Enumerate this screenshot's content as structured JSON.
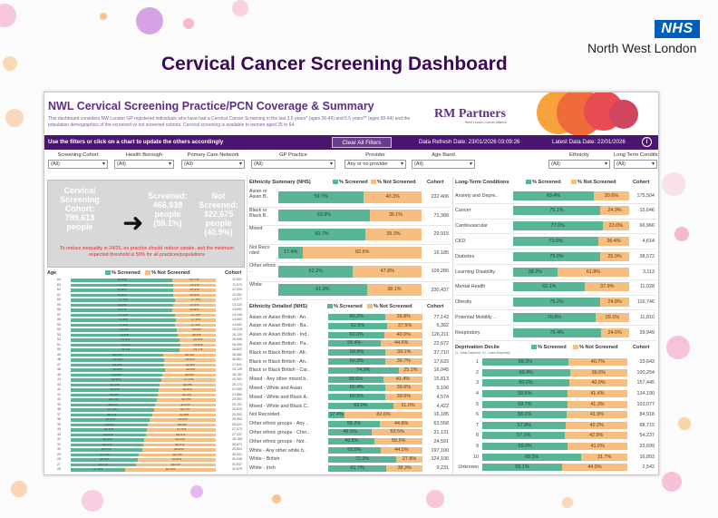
{
  "brand": {
    "nhs_logo": "NHS",
    "region": "North West London"
  },
  "page_title": "Cervical Cancer Screening Dashboard",
  "dashboard": {
    "title": "NWL Cervical Screening Practice/PCN Coverage & Summary",
    "description": "This dashboard considers NW London GP registered individuals who have had a Cervical Cancer Screening in the last 3.5 years* (ages 26-49) and 5.5 years** (ages 50-64) and the population demographics of the screened vs not screened cohorts. Cervical screening is available to women aged 25 to 64.",
    "partner_brand": "RM Partners",
    "partner_sub": "West London Cancer Alliance"
  },
  "filterbar": {
    "hint": "Use the filters or click on a chart to update the others accordingly",
    "clear_label": "Clear All Filters",
    "refresh": "Data Refresh Date: 23/01/2026 03:09:26",
    "latest": "Latest Data Date: 22/01/2026",
    "info_icon": "i"
  },
  "filters": [
    {
      "label": "Screening Cohort",
      "value": "(All)"
    },
    {
      "label": "Health Borough",
      "value": "(All)"
    },
    {
      "label": "Primary Care Network",
      "value": "(All)"
    },
    {
      "label": "GP Practice",
      "value": "(All)"
    },
    {
      "label": "Provider",
      "value": "Any or no provider"
    },
    {
      "label": "Age Band",
      "value": "(All)"
    },
    {
      "label": "Ethnicity",
      "value": "(All)"
    },
    {
      "label": "Long Term Conditions",
      "value": "(All)"
    }
  ],
  "kpi": {
    "cohort_line1": "Cervical",
    "cohort_line2": "Screening",
    "cohort_line3": "Cohort:",
    "cohort_value": "789,613",
    "cohort_unit": "people",
    "screened_label": "Screened:",
    "screened_value": "466,938",
    "screened_unit": "people",
    "screened_pct": "(59.1%)",
    "not_label": "Not Screened:",
    "not_value": "322,675",
    "not_unit": "people",
    "not_pct": "(40.9%)",
    "arrow": "➜",
    "note": "To reduce inequality in 24/25, no practice should reduce uptake, and the minimum expected threshold is 50% for all practices/populations"
  },
  "legend": {
    "screened": "% Screened",
    "not_screened": "% Not Screened",
    "cohort": "Cohort",
    "screened_color": "#5ab597",
    "not_color": "#f7be80"
  },
  "age": {
    "header": "Age",
    "rows": [
      {
        "age": "64",
        "s": "70.3%",
        "n": "29.7%",
        "c": "10,851"
      },
      {
        "age": "63",
        "s": "70.9%",
        "n": "29.1%",
        "c": "11,570"
      },
      {
        "age": "62",
        "s": "70.5%",
        "n": "29.5%",
        "c": "12,093"
      },
      {
        "age": "61",
        "s": "70.4%",
        "n": "29.6%",
        "c": "12,551"
      },
      {
        "age": "60",
        "s": "72.1%",
        "n": "27.9%",
        "c": "12,977"
      },
      {
        "age": "59",
        "s": "70.6%",
        "n": "29.4%",
        "c": "13,120"
      },
      {
        "age": "58",
        "s": "70.2%",
        "n": "29.8%",
        "c": "13,691"
      },
      {
        "age": "57",
        "s": "72.1%",
        "n": "27.9%",
        "c": "14,198"
      },
      {
        "age": "56",
        "s": "72.5%",
        "n": "27.5%",
        "c": "14,603"
      },
      {
        "age": "55",
        "s": "72.1%",
        "n": "27.9%",
        "c": "14,681"
      },
      {
        "age": "54",
        "s": "73.4%",
        "n": "26.6%",
        "c": "15,018"
      },
      {
        "age": "53",
        "s": "73.5%",
        "n": "26.5%",
        "c": "15,129"
      },
      {
        "age": "52",
        "s": "75.1%",
        "n": "24.9%",
        "c": "15,546"
      },
      {
        "age": "51",
        "s": "75.4%",
        "n": "24.6%",
        "c": "16,006"
      },
      {
        "age": "50",
        "s": "75.3%",
        "n": "24.7%",
        "c": "15,822"
      },
      {
        "age": "49",
        "s": "63.7%",
        "n": "36.3%",
        "c": "16,382"
      },
      {
        "age": "48",
        "s": "64.6%",
        "n": "35.4%",
        "c": "16,861"
      },
      {
        "age": "47",
        "s": "64.5%",
        "n": "35.5%",
        "c": "17,641"
      },
      {
        "age": "46",
        "s": "64.8%",
        "n": "35.2%",
        "c": "19,120"
      },
      {
        "age": "45",
        "s": "63.4%",
        "n": "36.6%",
        "c": "18,783"
      },
      {
        "age": "44",
        "s": "62.8%",
        "n": "37.2%",
        "c": "19,381"
      },
      {
        "age": "43",
        "s": "61.1%",
        "n": "38.9%",
        "c": "20,173"
      },
      {
        "age": "42",
        "s": "60.6%",
        "n": "39.4%",
        "c": "21,083"
      },
      {
        "age": "41",
        "s": "60.0%",
        "n": "40.0%",
        "c": "21,860"
      },
      {
        "age": "40",
        "s": "59.1%",
        "n": "40.9%",
        "c": "22,391"
      },
      {
        "age": "39",
        "s": "58.0%",
        "n": "42.0%",
        "c": "23,151"
      },
      {
        "age": "38",
        "s": "57.3%",
        "n": "42.7%",
        "c": "24,610"
      },
      {
        "age": "37",
        "s": "56.2%",
        "n": "43.8%",
        "c": "25,303"
      },
      {
        "age": "36",
        "s": "54.5%",
        "n": "45.5%",
        "c": "25,962"
      },
      {
        "age": "35",
        "s": "53.4%",
        "n": "46.6%",
        "c": "26,021"
      },
      {
        "age": "34",
        "s": "52.6%",
        "n": "47.4%",
        "c": "27,073"
      },
      {
        "age": "33",
        "s": "51.6%",
        "n": "48.4%",
        "c": "27,437"
      },
      {
        "age": "32",
        "s": "50.8%",
        "n": "49.2%",
        "c": "28,165"
      },
      {
        "age": "31",
        "s": "50.1%",
        "n": "49.9%",
        "c": "28,871"
      },
      {
        "age": "30",
        "s": "49.2%",
        "n": "50.8%",
        "c": "29,604"
      },
      {
        "age": "29",
        "s": "47.1%",
        "n": "52.9%",
        "c": "30,001"
      },
      {
        "age": "28",
        "s": "46.4%",
        "n": "53.6%",
        "c": "30,948"
      },
      {
        "age": "27",
        "s": "44.7%",
        "n": "55.3%",
        "c": "31,537"
      },
      {
        "age": "26",
        "s": "37.6%",
        "n": "62.4%",
        "c": "30,879"
      }
    ]
  },
  "ethnicity_summary": {
    "header": "Ethnicity Summary (NHS)",
    "rows": [
      {
        "label": "Asian or Asian B..",
        "s": 59.7,
        "n": 40.3,
        "c": "232,406"
      },
      {
        "label": "Black or Black B..",
        "s": 63.9,
        "n": 36.1,
        "c": "71,388"
      },
      {
        "label": "Mixed",
        "s": 60.7,
        "n": 39.3,
        "c": "29,915"
      },
      {
        "label": "Not Reco rded",
        "s": 17.4,
        "n": 82.6,
        "c": "16,185"
      },
      {
        "label": "Other ethnic ..",
        "s": 52.2,
        "n": 47.8,
        "c": "109,280"
      },
      {
        "label": "White",
        "s": 61.9,
        "n": 38.1,
        "c": "330,437"
      }
    ]
  },
  "ethnicity_detailed": {
    "header": "Ethnicity Detailed (NHS)",
    "rows": [
      {
        "label": "Asian or Asian British - An..",
        "s": 60.2,
        "n": 39.8,
        "c": "77,143"
      },
      {
        "label": "Asian or Asian British - Ba..",
        "s": 62.5,
        "n": 37.5,
        "c": "6,382"
      },
      {
        "label": "Asian or Asian British - Ind..",
        "s": 60.0,
        "n": 40.0,
        "c": "126,211"
      },
      {
        "label": "Asian or Asian British - Pa..",
        "s": 55.4,
        "n": 44.6,
        "c": "22,672"
      },
      {
        "label": "Black or Black British - Afr..",
        "s": 60.9,
        "n": 39.1,
        "c": "37,710"
      },
      {
        "label": "Black or Black British - An..",
        "s": 60.3,
        "n": 39.7,
        "c": "17,633"
      },
      {
        "label": "Black or Black British - Car..",
        "s": 74.9,
        "n": 25.1,
        "c": "16,045"
      },
      {
        "label": "Mixed - Any other mixed b..",
        "s": 58.6,
        "n": 41.4,
        "c": "15,813"
      },
      {
        "label": "Mixed - White and Asian",
        "s": 60.4,
        "n": 39.6,
        "c": "5,106"
      },
      {
        "label": "Mixed - White and Black A..",
        "s": 60.5,
        "n": 39.5,
        "c": "4,574"
      },
      {
        "label": "Mixed - White and Black C..",
        "s": 69.0,
        "n": 31.0,
        "c": "4,422"
      },
      {
        "label": "Not Recorded",
        "s": 17.4,
        "n": 82.6,
        "c": "16,185"
      },
      {
        "label": "Other ethnic groups - Any ..",
        "s": 55.2,
        "n": 44.8,
        "c": "63,558"
      },
      {
        "label": "Other ethnic groups - Chin..",
        "s": 46.5,
        "n": 53.5,
        "c": "21,131"
      },
      {
        "label": "Other ethnic groups - Not ..",
        "s": 49.5,
        "n": 50.5,
        "c": "24,591"
      },
      {
        "label": "White - Any other white b..",
        "s": 55.5,
        "n": 44.5,
        "c": "197,100"
      },
      {
        "label": "White - British",
        "s": 72.2,
        "n": 27.8,
        "c": "124,106"
      },
      {
        "label": "White - Irish",
        "s": 61.7,
        "n": 38.3,
        "c": "9,231"
      }
    ]
  },
  "ltc": {
    "header": "Long-Term Conditions",
    "rows": [
      {
        "label": "Anxiety and Depre..",
        "s": 69.4,
        "n": 30.6,
        "c": "175,504"
      },
      {
        "label": "Cancer",
        "s": 75.1,
        "n": 24.9,
        "c": "15,646"
      },
      {
        "label": "Cardiovascular",
        "s": 77.0,
        "n": 23.0,
        "c": "66,966"
      },
      {
        "label": "CKD",
        "s": 73.6,
        "n": 26.4,
        "c": "4,614"
      },
      {
        "label": "Diabetes",
        "s": 75.0,
        "n": 25.0,
        "c": "38,572"
      },
      {
        "label": "Learning Disability",
        "s": 38.2,
        "n": 61.8,
        "c": "3,113"
      },
      {
        "label": "Mental Health",
        "s": 62.1,
        "n": 37.9,
        "c": "11,028"
      },
      {
        "label": "Obesity",
        "s": 75.2,
        "n": 24.8,
        "c": "116,746"
      },
      {
        "label": "Potential Mobility ..",
        "s": 70.9,
        "n": 29.1,
        "c": "11,810"
      },
      {
        "label": "Respiratory",
        "s": 75.4,
        "n": 24.6,
        "c": "39,949"
      }
    ]
  },
  "deprivation": {
    "header": "Deprivation Decile",
    "subheader": "(1 - Most Deprived, 10 - Least Deprived)",
    "rows": [
      {
        "label": "1",
        "s": 59.3,
        "n": 40.7,
        "c": "33,643"
      },
      {
        "label": "2",
        "s": 60.4,
        "n": 39.6,
        "c": "100,254"
      },
      {
        "label": "3",
        "s": 60.0,
        "n": 40.0,
        "c": "157,445"
      },
      {
        "label": "4",
        "s": 58.6,
        "n": 41.4,
        "c": "134,190"
      },
      {
        "label": "5",
        "s": 58.7,
        "n": 41.3,
        "c": "103,077"
      },
      {
        "label": "6",
        "s": 58.1,
        "n": 41.9,
        "c": "84,918"
      },
      {
        "label": "7",
        "s": 57.8,
        "n": 42.2,
        "c": "68,715"
      },
      {
        "label": "8",
        "s": 57.1,
        "n": 42.9,
        "c": "54,237"
      },
      {
        "label": "9",
        "s": 59.0,
        "n": 41.0,
        "c": "33,699"
      },
      {
        "label": "10",
        "s": 68.3,
        "n": 31.7,
        "c": "16,893"
      },
      {
        "label": "Unknown",
        "s": 55.1,
        "n": 44.9,
        "c": "2,542"
      }
    ]
  }
}
